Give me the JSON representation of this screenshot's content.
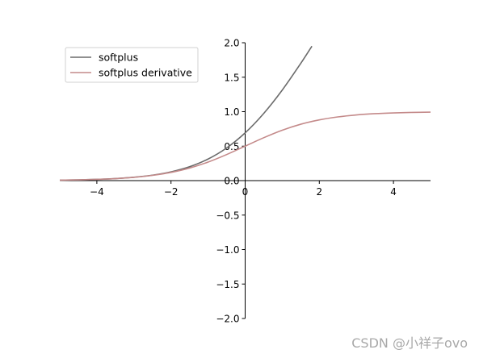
{
  "chart_data": {
    "type": "line",
    "title": "",
    "xlabel": "",
    "ylabel": "",
    "xlim": [
      -5,
      5
    ],
    "ylim": [
      -2,
      2
    ],
    "spines": "centered at origin",
    "grid": false,
    "legend_placement": "upper-left",
    "x_ticks": [
      {
        "value": -4,
        "label": "−4"
      },
      {
        "value": -2,
        "label": "−2"
      },
      {
        "value": 0,
        "label": "0"
      },
      {
        "value": 2,
        "label": "2"
      },
      {
        "value": 4,
        "label": "4"
      }
    ],
    "y_ticks": [
      {
        "value": -2.0,
        "label": "−2.0"
      },
      {
        "value": -1.5,
        "label": "−1.5"
      },
      {
        "value": -1.0,
        "label": "−1.0"
      },
      {
        "value": -0.5,
        "label": "−0.5"
      },
      {
        "value": 0.0,
        "label": "0.0"
      },
      {
        "value": 0.5,
        "label": "0.5"
      },
      {
        "value": 1.0,
        "label": "1.0"
      },
      {
        "value": 1.5,
        "label": "1.5"
      },
      {
        "value": 2.0,
        "label": "2.0"
      }
    ],
    "series": [
      {
        "name": "softplus",
        "color": "#6b6b6b",
        "x": [
          -5,
          -4.5,
          -4,
          -3.5,
          -3,
          -2.5,
          -2,
          -1.5,
          -1,
          -0.5,
          0,
          0.5,
          1,
          1.5,
          1.8
        ],
        "y": [
          0.007,
          0.011,
          0.018,
          0.03,
          0.049,
          0.079,
          0.127,
          0.201,
          0.313,
          0.474,
          0.693,
          0.974,
          1.313,
          1.701,
          1.95
        ]
      },
      {
        "name": "softplus derivative",
        "color": "#c48a8a",
        "x": [
          -5,
          -4.5,
          -4,
          -3.5,
          -3,
          -2.5,
          -2,
          -1.5,
          -1,
          -0.5,
          0,
          0.5,
          1,
          1.5,
          2,
          2.5,
          3,
          3.5,
          4,
          4.5,
          5
        ],
        "y": [
          0.007,
          0.011,
          0.018,
          0.029,
          0.047,
          0.076,
          0.119,
          0.182,
          0.269,
          0.378,
          0.5,
          0.622,
          0.731,
          0.818,
          0.881,
          0.924,
          0.953,
          0.971,
          0.982,
          0.989,
          0.993
        ]
      }
    ]
  },
  "watermark": "CSDN @小祥子ovo"
}
